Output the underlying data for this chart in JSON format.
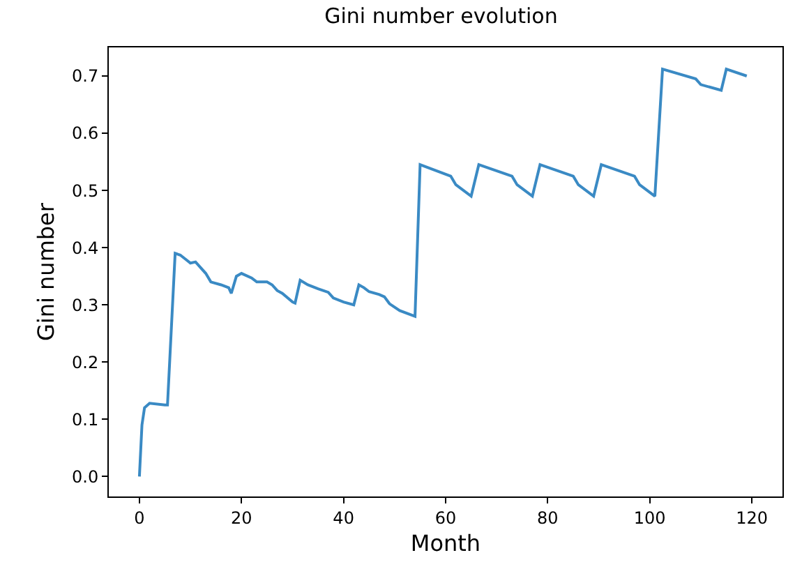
{
  "chart_data": {
    "type": "line",
    "title": "Gini number evolution",
    "xlabel": "Month",
    "ylabel": "Gini number",
    "x": [
      0,
      0.5,
      1,
      2,
      5,
      5.5,
      7,
      8,
      9,
      10,
      11,
      12,
      13,
      14,
      16,
      17.5,
      18,
      19,
      20,
      22,
      23,
      25,
      26,
      27,
      28,
      30,
      30.5,
      31.5,
      33,
      35,
      37,
      38,
      40,
      42,
      43,
      44,
      45,
      47,
      48,
      49,
      51,
      54,
      55,
      61,
      62,
      65,
      66.5,
      73,
      74,
      77,
      78.5,
      85,
      86,
      89,
      90.5,
      97,
      98,
      101,
      102.5,
      109,
      110,
      114,
      115,
      119
    ],
    "series": [
      {
        "color": "#3a8ac4",
        "values": [
          0,
          0.09,
          0.12,
          0.128,
          0.125,
          0.125,
          0.39,
          0.387,
          0.38,
          0.373,
          0.375,
          0.365,
          0.355,
          0.34,
          0.335,
          0.33,
          0.32,
          0.35,
          0.355,
          0.347,
          0.34,
          0.34,
          0.335,
          0.325,
          0.32,
          0.305,
          0.303,
          0.343,
          0.335,
          0.328,
          0.322,
          0.312,
          0.305,
          0.3,
          0.335,
          0.33,
          0.323,
          0.318,
          0.314,
          0.302,
          0.29,
          0.28,
          0.545,
          0.525,
          0.51,
          0.49,
          0.545,
          0.525,
          0.51,
          0.49,
          0.545,
          0.525,
          0.51,
          0.49,
          0.545,
          0.525,
          0.51,
          0.49,
          0.712,
          0.695,
          0.685,
          0.675,
          0.712,
          0.7
        ]
      }
    ],
    "xlim": [
      -6,
      126
    ],
    "ylim": [
      -0.035,
      0.75
    ],
    "xticks": [
      0,
      20,
      40,
      60,
      80,
      100,
      120
    ],
    "yticks": [
      {
        "value": 0,
        "label": "0.0"
      },
      {
        "value": 0.1,
        "label": "0.1"
      },
      {
        "value": 0.2,
        "label": "0.2"
      },
      {
        "value": 0.3,
        "label": "0.3"
      },
      {
        "value": 0.4,
        "label": "0.4"
      },
      {
        "value": 0.5,
        "label": "0.5"
      },
      {
        "value": 0.6,
        "label": "0.6"
      },
      {
        "value": 0.7,
        "label": "0.7"
      }
    ],
    "grid": false,
    "line_style": "solid",
    "marker": "none"
  }
}
